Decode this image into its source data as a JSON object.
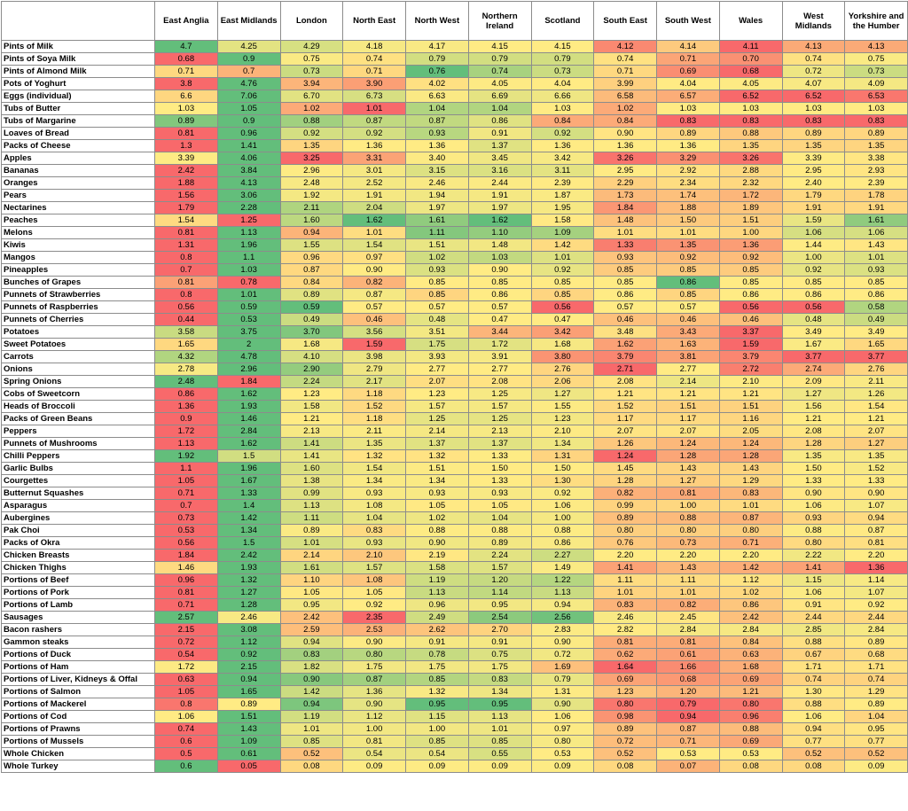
{
  "columns": [
    "",
    "East Anglia",
    "East Midlands",
    "London",
    "North East",
    "North West",
    "Northern Ireland",
    "Scotland",
    "South East",
    "South West",
    "Wales",
    "West Midlands",
    "Yorkshire and the Humber"
  ],
  "color_scale": {
    "low": "#f8696b",
    "mid": "#ffeb84",
    "high": "#63be7b"
  },
  "rows": [
    [
      "Pints of Milk",
      "4.7",
      "4.25",
      "4.29",
      "4.18",
      "4.17",
      "4.15",
      "4.15",
      "4.12",
      "4.14",
      "4.11",
      "4.13",
      "4.13"
    ],
    [
      "Pints of Soya Milk",
      "0.68",
      "0.9",
      "0.75",
      "0.74",
      "0.79",
      "0.79",
      "0.79",
      "0.74",
      "0.71",
      "0.70",
      "0.74",
      "0.75"
    ],
    [
      "Pints of Almond Milk",
      "0.71",
      "0.7",
      "0.73",
      "0.71",
      "0.76",
      "0.74",
      "0.73",
      "0.71",
      "0.69",
      "0.68",
      "0.72",
      "0.73"
    ],
    [
      "Pots of Yoghurt",
      "3.8",
      "4.76",
      "3.94",
      "3.90",
      "4.02",
      "4.05",
      "4.04",
      "3.99",
      "4.04",
      "4.05",
      "4.07",
      "4.09"
    ],
    [
      "Eggs (individual)",
      "6.6",
      "7.06",
      "6.70",
      "6.73",
      "6.63",
      "6.69",
      "6.66",
      "6.58",
      "6.57",
      "6.52",
      "6.52",
      "6.53"
    ],
    [
      "Tubs of Butter",
      "1.03",
      "1.05",
      "1.02",
      "1.01",
      "1.04",
      "1.04",
      "1.03",
      "1.02",
      "1.03",
      "1.03",
      "1.03",
      "1.03"
    ],
    [
      "Tubs of Margarine",
      "0.89",
      "0.9",
      "0.88",
      "0.87",
      "0.87",
      "0.86",
      "0.84",
      "0.84",
      "0.83",
      "0.83",
      "0.83",
      "0.83"
    ],
    [
      "Loaves of Bread",
      "0.81",
      "0.96",
      "0.92",
      "0.92",
      "0.93",
      "0.91",
      "0.92",
      "0.90",
      "0.89",
      "0.88",
      "0.89",
      "0.89"
    ],
    [
      "Packs of Cheese",
      "1.3",
      "1.41",
      "1.35",
      "1.36",
      "1.36",
      "1.37",
      "1.36",
      "1.36",
      "1.36",
      "1.35",
      "1.35",
      "1.35"
    ],
    [
      "Apples",
      "3.39",
      "4.06",
      "3.25",
      "3.31",
      "3.40",
      "3.45",
      "3.42",
      "3.26",
      "3.29",
      "3.26",
      "3.39",
      "3.38"
    ],
    [
      "Bananas",
      "2.42",
      "3.84",
      "2.96",
      "3.01",
      "3.15",
      "3.16",
      "3.11",
      "2.95",
      "2.92",
      "2.88",
      "2.95",
      "2.93"
    ],
    [
      "Oranges",
      "1.88",
      "4.13",
      "2.48",
      "2.52",
      "2.46",
      "2.44",
      "2.39",
      "2.29",
      "2.34",
      "2.32",
      "2.40",
      "2.39"
    ],
    [
      "Pears",
      "1.56",
      "3.06",
      "1.92",
      "1.91",
      "1.94",
      "1.91",
      "1.87",
      "1.73",
      "1.74",
      "1.72",
      "1.79",
      "1.78"
    ],
    [
      "Nectarines",
      "1.79",
      "2.28",
      "2.11",
      "2.04",
      "1.97",
      "1.97",
      "1.95",
      "1.84",
      "1.88",
      "1.89",
      "1.91",
      "1.91"
    ],
    [
      "Peaches",
      "1.54",
      "1.25",
      "1.60",
      "1.62",
      "1.61",
      "1.62",
      "1.58",
      "1.48",
      "1.50",
      "1.51",
      "1.59",
      "1.61"
    ],
    [
      "Melons",
      "0.81",
      "1.13",
      "0.94",
      "1.01",
      "1.11",
      "1.10",
      "1.09",
      "1.01",
      "1.01",
      "1.00",
      "1.06",
      "1.06"
    ],
    [
      "Kiwis",
      "1.31",
      "1.96",
      "1.55",
      "1.54",
      "1.51",
      "1.48",
      "1.42",
      "1.33",
      "1.35",
      "1.36",
      "1.44",
      "1.43"
    ],
    [
      "Mangos",
      "0.8",
      "1.1",
      "0.96",
      "0.97",
      "1.02",
      "1.03",
      "1.01",
      "0.93",
      "0.92",
      "0.92",
      "1.00",
      "1.01"
    ],
    [
      "Pineapples",
      "0.7",
      "1.03",
      "0.87",
      "0.90",
      "0.93",
      "0.90",
      "0.92",
      "0.85",
      "0.85",
      "0.85",
      "0.92",
      "0.93"
    ],
    [
      "Bunches of Grapes",
      "0.81",
      "0.78",
      "0.84",
      "0.82",
      "0.85",
      "0.85",
      "0.85",
      "0.85",
      "0.86",
      "0.85",
      "0.85",
      "0.85"
    ],
    [
      "Punnets of Strawberries",
      "0.8",
      "1.01",
      "0.89",
      "0.87",
      "0.85",
      "0.86",
      "0.85",
      "0.86",
      "0.85",
      "0.86",
      "0.86",
      "0.86"
    ],
    [
      "Punnets of Raspberries",
      "0.56",
      "0.59",
      "0.59",
      "0.57",
      "0.57",
      "0.57",
      "0.56",
      "0.57",
      "0.57",
      "0.56",
      "0.56",
      "0.58"
    ],
    [
      "Punnets of Cherries",
      "0.44",
      "0.53",
      "0.49",
      "0.46",
      "0.48",
      "0.47",
      "0.47",
      "0.46",
      "0.46",
      "0.46",
      "0.48",
      "0.49"
    ],
    [
      "Potatoes",
      "3.58",
      "3.75",
      "3.70",
      "3.56",
      "3.51",
      "3.44",
      "3.42",
      "3.48",
      "3.43",
      "3.37",
      "3.49",
      "3.49"
    ],
    [
      "Sweet Potatoes",
      "1.65",
      "2",
      "1.68",
      "1.59",
      "1.75",
      "1.72",
      "1.68",
      "1.62",
      "1.63",
      "1.59",
      "1.67",
      "1.65"
    ],
    [
      "Carrots",
      "4.32",
      "4.78",
      "4.10",
      "3.98",
      "3.93",
      "3.91",
      "3.80",
      "3.79",
      "3.81",
      "3.79",
      "3.77",
      "3.77"
    ],
    [
      "Onions",
      "2.78",
      "2.96",
      "2.90",
      "2.79",
      "2.77",
      "2.77",
      "2.76",
      "2.71",
      "2.77",
      "2.72",
      "2.74",
      "2.76"
    ],
    [
      "Spring Onions",
      "2.48",
      "1.84",
      "2.24",
      "2.17",
      "2.07",
      "2.08",
      "2.06",
      "2.08",
      "2.14",
      "2.10",
      "2.09",
      "2.11"
    ],
    [
      "Cobs of Sweetcorn",
      "0.86",
      "1.62",
      "1.23",
      "1.18",
      "1.23",
      "1.25",
      "1.27",
      "1.21",
      "1.21",
      "1.21",
      "1.27",
      "1.26"
    ],
    [
      "Heads of Broccoli",
      "1.36",
      "1.93",
      "1.58",
      "1.52",
      "1.57",
      "1.57",
      "1.55",
      "1.52",
      "1.51",
      "1.51",
      "1.56",
      "1.54"
    ],
    [
      "Packs of Green Beans",
      "0.9",
      "1.46",
      "1.21",
      "1.18",
      "1.25",
      "1.25",
      "1.23",
      "1.17",
      "1.17",
      "1.16",
      "1.21",
      "1.21"
    ],
    [
      "Peppers",
      "1.72",
      "2.84",
      "2.13",
      "2.11",
      "2.14",
      "2.13",
      "2.10",
      "2.07",
      "2.07",
      "2.05",
      "2.08",
      "2.07"
    ],
    [
      "Punnets of Mushrooms",
      "1.13",
      "1.62",
      "1.41",
      "1.35",
      "1.37",
      "1.37",
      "1.34",
      "1.26",
      "1.24",
      "1.24",
      "1.28",
      "1.27"
    ],
    [
      "Chilli Peppers",
      "1.92",
      "1.5",
      "1.41",
      "1.32",
      "1.32",
      "1.33",
      "1.31",
      "1.24",
      "1.28",
      "1.28",
      "1.35",
      "1.35"
    ],
    [
      "Garlic Bulbs",
      "1.1",
      "1.96",
      "1.60",
      "1.54",
      "1.51",
      "1.50",
      "1.50",
      "1.45",
      "1.43",
      "1.43",
      "1.50",
      "1.52"
    ],
    [
      "Courgettes",
      "1.05",
      "1.67",
      "1.38",
      "1.34",
      "1.34",
      "1.33",
      "1.30",
      "1.28",
      "1.27",
      "1.29",
      "1.33",
      "1.33"
    ],
    [
      "Butternut Squashes",
      "0.71",
      "1.33",
      "0.99",
      "0.93",
      "0.93",
      "0.93",
      "0.92",
      "0.82",
      "0.81",
      "0.83",
      "0.90",
      "0.90"
    ],
    [
      "Asparagus",
      "0.7",
      "1.4",
      "1.13",
      "1.08",
      "1.05",
      "1.05",
      "1.06",
      "0.99",
      "1.00",
      "1.01",
      "1.06",
      "1.07"
    ],
    [
      "Aubergines",
      "0.73",
      "1.42",
      "1.11",
      "1.04",
      "1.02",
      "1.04",
      "1.00",
      "0.89",
      "0.88",
      "0.87",
      "0.93",
      "0.94"
    ],
    [
      "Pak Choi",
      "0.53",
      "1.34",
      "0.89",
      "0.83",
      "0.88",
      "0.88",
      "0.88",
      "0.80",
      "0.80",
      "0.80",
      "0.88",
      "0.87"
    ],
    [
      "Packs of Okra",
      "0.56",
      "1.5",
      "1.01",
      "0.93",
      "0.90",
      "0.89",
      "0.86",
      "0.76",
      "0.73",
      "0.71",
      "0.80",
      "0.81"
    ],
    [
      "Chicken Breasts",
      "1.84",
      "2.42",
      "2.14",
      "2.10",
      "2.19",
      "2.24",
      "2.27",
      "2.20",
      "2.20",
      "2.20",
      "2.22",
      "2.20"
    ],
    [
      "Chicken Thighs",
      "1.46",
      "1.93",
      "1.61",
      "1.57",
      "1.58",
      "1.57",
      "1.49",
      "1.41",
      "1.43",
      "1.42",
      "1.41",
      "1.36"
    ],
    [
      "Portions of Beef",
      "0.96",
      "1.32",
      "1.10",
      "1.08",
      "1.19",
      "1.20",
      "1.22",
      "1.11",
      "1.11",
      "1.12",
      "1.15",
      "1.14"
    ],
    [
      "Portions of Pork",
      "0.81",
      "1.27",
      "1.05",
      "1.05",
      "1.13",
      "1.14",
      "1.13",
      "1.01",
      "1.01",
      "1.02",
      "1.06",
      "1.07"
    ],
    [
      "Portions of Lamb",
      "0.71",
      "1.28",
      "0.95",
      "0.92",
      "0.96",
      "0.95",
      "0.94",
      "0.83",
      "0.82",
      "0.86",
      "0.91",
      "0.92"
    ],
    [
      "Sausages",
      "2.57",
      "2.46",
      "2.42",
      "2.35",
      "2.49",
      "2.54",
      "2.56",
      "2.46",
      "2.45",
      "2.42",
      "2.44",
      "2.44"
    ],
    [
      "Bacon rashers",
      "2.15",
      "3.08",
      "2.59",
      "2.53",
      "2.62",
      "2.70",
      "2.83",
      "2.82",
      "2.84",
      "2.84",
      "2.85",
      "2.84"
    ],
    [
      "Gammon steaks",
      "0.72",
      "1.12",
      "0.94",
      "0.90",
      "0.91",
      "0.91",
      "0.90",
      "0.81",
      "0.81",
      "0.84",
      "0.88",
      "0.89"
    ],
    [
      "Portions of Duck",
      "0.54",
      "0.92",
      "0.83",
      "0.80",
      "0.78",
      "0.75",
      "0.72",
      "0.62",
      "0.61",
      "0.63",
      "0.67",
      "0.68"
    ],
    [
      "Portions of Ham",
      "1.72",
      "2.15",
      "1.82",
      "1.75",
      "1.75",
      "1.75",
      "1.69",
      "1.64",
      "1.66",
      "1.68",
      "1.71",
      "1.71"
    ],
    [
      "Portions of Liver, Kidneys & Offal",
      "0.63",
      "0.94",
      "0.90",
      "0.87",
      "0.85",
      "0.83",
      "0.79",
      "0.69",
      "0.68",
      "0.69",
      "0.74",
      "0.74"
    ],
    [
      "Portions of Salmon",
      "1.05",
      "1.65",
      "1.42",
      "1.36",
      "1.32",
      "1.34",
      "1.31",
      "1.23",
      "1.20",
      "1.21",
      "1.30",
      "1.29"
    ],
    [
      "Portions of Mackerel",
      "0.8",
      "0.89",
      "0.94",
      "0.90",
      "0.95",
      "0.95",
      "0.90",
      "0.80",
      "0.79",
      "0.80",
      "0.88",
      "0.89"
    ],
    [
      "Portions of Cod",
      "1.06",
      "1.51",
      "1.19",
      "1.12",
      "1.15",
      "1.13",
      "1.06",
      "0.98",
      "0.94",
      "0.96",
      "1.06",
      "1.04"
    ],
    [
      "Portions of Prawns",
      "0.74",
      "1.43",
      "1.01",
      "1.00",
      "1.00",
      "1.01",
      "0.97",
      "0.89",
      "0.87",
      "0.88",
      "0.94",
      "0.95"
    ],
    [
      "Portions of Mussels",
      "0.6",
      "1.09",
      "0.85",
      "0.81",
      "0.85",
      "0.85",
      "0.80",
      "0.72",
      "0.71",
      "0.69",
      "0.77",
      "0.77"
    ],
    [
      "Whole Chicken",
      "0.5",
      "0.61",
      "0.52",
      "0.54",
      "0.54",
      "0.55",
      "0.53",
      "0.52",
      "0.53",
      "0.53",
      "0.52",
      "0.52"
    ],
    [
      "Whole Turkey",
      "0.6",
      "0.05",
      "0.08",
      "0.09",
      "0.09",
      "0.09",
      "0.09",
      "0.08",
      "0.07",
      "0.08",
      "0.08",
      "0.09"
    ]
  ]
}
